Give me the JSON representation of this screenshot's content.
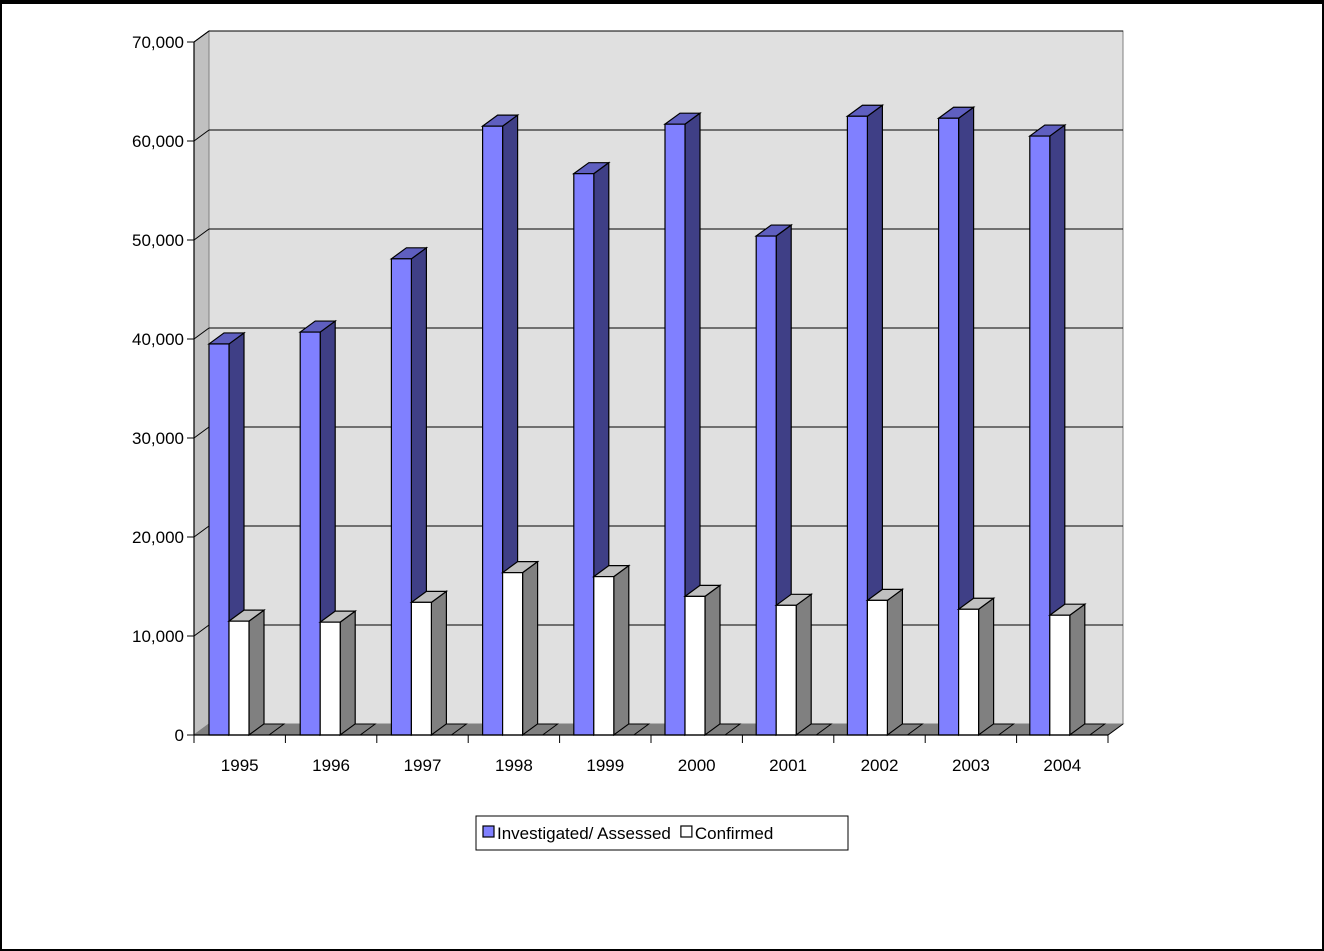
{
  "chart_data": {
    "type": "bar",
    "style": "3d-clustered-column",
    "categories": [
      "1995",
      "1996",
      "1997",
      "1998",
      "1999",
      "2000",
      "2001",
      "2002",
      "2003",
      "2004"
    ],
    "series": [
      {
        "name": "Investigated/ Assessed",
        "color": "#8080ff",
        "side_color": "#3f3f86",
        "values": [
          39500,
          40700,
          48100,
          61500,
          56700,
          61700,
          50400,
          62500,
          62300,
          60500
        ]
      },
      {
        "name": "Confirmed",
        "color": "#ffffff",
        "side_color": "#808080",
        "values": [
          11500,
          11400,
          13400,
          16400,
          16000,
          14000,
          13100,
          13600,
          12700,
          12100
        ]
      }
    ],
    "ylim": [
      0,
      70000
    ],
    "yticks": [
      0,
      10000,
      20000,
      30000,
      40000,
      50000,
      60000,
      70000
    ],
    "ytick_labels": [
      "0",
      "10,000",
      "20,000",
      "30,000",
      "40,000",
      "50,000",
      "60,000",
      "70,000"
    ],
    "grid": true,
    "legend_position": "bottom",
    "plot_background": "#e0e0e0"
  }
}
